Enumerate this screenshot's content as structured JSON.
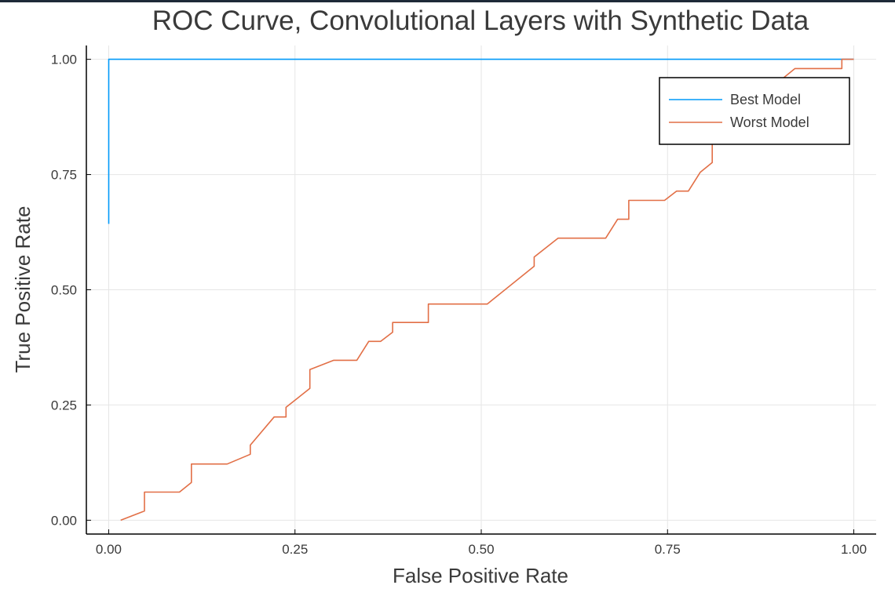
{
  "chart_data": {
    "type": "line",
    "title": "ROC Curve, Convolutional Layers with Synthetic Data",
    "xlabel": "False Positive Rate",
    "ylabel": "True Positive Rate",
    "xlim": [
      -0.03,
      1.03
    ],
    "ylim": [
      -0.03,
      1.03
    ],
    "x_ticks": [
      0.0,
      0.25,
      0.5,
      0.75,
      1.0
    ],
    "x_tick_labels": [
      "0.00",
      "0.25",
      "0.50",
      "0.75",
      "1.00"
    ],
    "y_ticks": [
      0.0,
      0.25,
      0.5,
      0.75,
      1.0
    ],
    "y_tick_labels": [
      "0.00",
      "0.25",
      "0.50",
      "0.75",
      "1.00"
    ],
    "grid": true,
    "legend_position": "top-right",
    "series": [
      {
        "name": "Best Model",
        "color": "#009af9",
        "x": [
          0.0,
          0.0,
          1.0
        ],
        "y": [
          0.643,
          1.0,
          1.0
        ]
      },
      {
        "name": "Worst Model",
        "color": "#e26f46",
        "x": [
          0.016,
          0.048,
          0.048,
          0.095,
          0.111,
          0.111,
          0.159,
          0.19,
          0.19,
          0.222,
          0.238,
          0.238,
          0.27,
          0.27,
          0.302,
          0.333,
          0.349,
          0.365,
          0.381,
          0.381,
          0.429,
          0.429,
          0.508,
          0.571,
          0.571,
          0.603,
          0.667,
          0.683,
          0.698,
          0.698,
          0.746,
          0.762,
          0.778,
          0.794,
          0.81,
          0.81,
          0.825,
          0.857,
          0.873,
          0.889,
          0.905,
          0.921,
          0.984,
          0.984,
          1.0
        ],
        "y": [
          0.0,
          0.02,
          0.061,
          0.061,
          0.082,
          0.122,
          0.122,
          0.143,
          0.163,
          0.224,
          0.224,
          0.245,
          0.286,
          0.327,
          0.347,
          0.347,
          0.388,
          0.388,
          0.408,
          0.429,
          0.429,
          0.469,
          0.469,
          0.551,
          0.571,
          0.612,
          0.612,
          0.653,
          0.653,
          0.694,
          0.694,
          0.714,
          0.714,
          0.755,
          0.776,
          0.816,
          0.857,
          0.878,
          0.918,
          0.939,
          0.959,
          0.98,
          0.98,
          1.0,
          1.0
        ]
      }
    ]
  }
}
